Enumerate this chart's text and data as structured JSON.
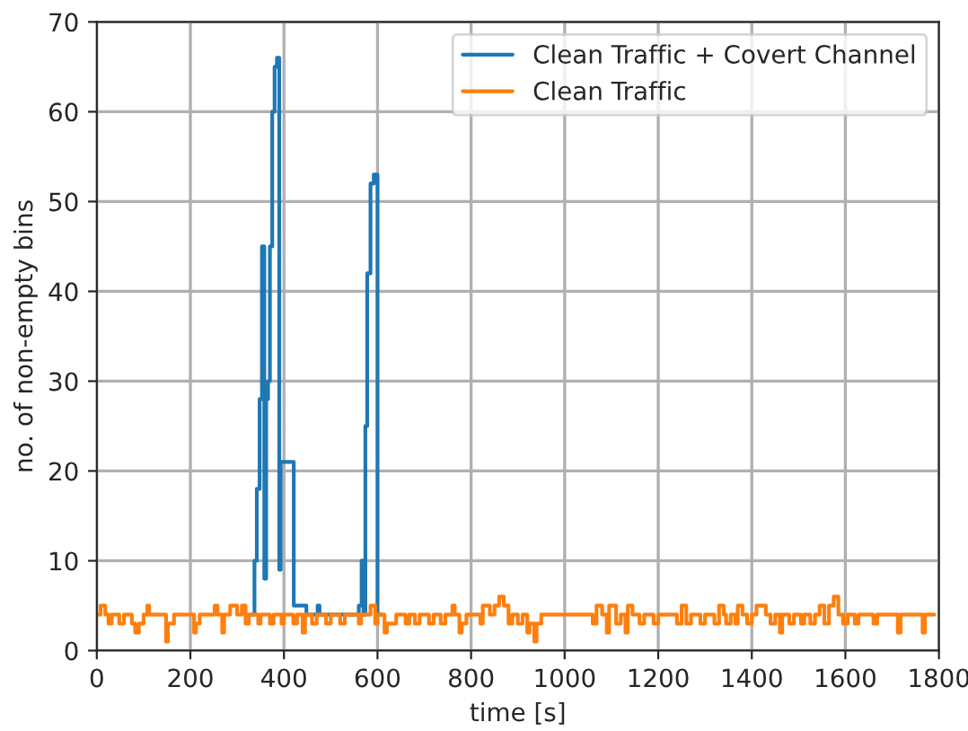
{
  "chart_data": {
    "type": "step",
    "xlabel": "time [s]",
    "ylabel": "no. of non-empty bins",
    "xlim": [
      0,
      1800
    ],
    "ylim": [
      0,
      70
    ],
    "xticks": [
      0,
      200,
      400,
      600,
      800,
      1000,
      1200,
      1400,
      1600,
      1800
    ],
    "yticks": [
      0,
      10,
      20,
      30,
      40,
      50,
      60,
      70
    ],
    "grid": true,
    "legend": "top right",
    "series": [
      {
        "name": "Clean Traffic + Covert Channel",
        "color": "#1f77b4",
        "x": [
          330,
          337,
          342,
          348,
          353,
          358,
          362,
          366,
          370,
          375,
          380,
          385,
          390,
          393,
          421,
          448,
          472,
          476,
          560,
          566,
          570,
          574,
          578,
          585,
          592,
          600,
          610
        ],
        "values": [
          4,
          10,
          18,
          28,
          45,
          8,
          28,
          30,
          45,
          60,
          65,
          66,
          9,
          21,
          5,
          4,
          5,
          4,
          5,
          10,
          4,
          25,
          42,
          52,
          53,
          4,
          4
        ]
      },
      {
        "name": "Clean Traffic",
        "color": "#ff7f0e",
        "x": [
          0,
          8,
          18,
          25,
          32,
          48,
          58,
          75,
          82,
          90,
          100,
          108,
          112,
          140,
          148,
          152,
          165,
          200,
          208,
          212,
          220,
          245,
          252,
          258,
          268,
          272,
          285,
          300,
          310,
          318,
          325,
          345,
          350,
          370,
          378,
          395,
          400,
          420,
          428,
          440,
          445,
          460,
          470,
          490,
          500,
          520,
          530,
          560,
          565,
          585,
          595,
          600,
          615,
          620,
          640,
          660,
          668,
          680,
          690,
          710,
          720,
          735,
          745,
          760,
          765,
          775,
          780,
          790,
          820,
          825,
          840,
          850,
          860,
          870,
          880,
          888,
          900,
          910,
          920,
          925,
          935,
          940,
          950,
          1060,
          1068,
          1080,
          1090,
          1095,
          1110,
          1120,
          1130,
          1135,
          1145,
          1160,
          1170,
          1190,
          1200,
          1240,
          1250,
          1260,
          1270,
          1290,
          1300,
          1320,
          1330,
          1340,
          1345,
          1355,
          1365,
          1370,
          1380,
          1390,
          1400,
          1410,
          1430,
          1440,
          1450,
          1460,
          1465,
          1480,
          1490,
          1505,
          1512,
          1525,
          1535,
          1545,
          1555,
          1565,
          1575,
          1585,
          1595,
          1605,
          1620,
          1628,
          1660,
          1668,
          1712,
          1718,
          1765,
          1770,
          1790
        ],
        "values": [
          4,
          5,
          4,
          3,
          4,
          3,
          4,
          3,
          2,
          3,
          4,
          5,
          4,
          4,
          1,
          3,
          4,
          4,
          2,
          3,
          4,
          4,
          5,
          4,
          2,
          4,
          5,
          4,
          5,
          3,
          4,
          3,
          4,
          3,
          4,
          3,
          4,
          3,
          4,
          2,
          4,
          3,
          4,
          3,
          4,
          3,
          4,
          3,
          4,
          5,
          3,
          4,
          2,
          3,
          4,
          3,
          4,
          3,
          4,
          3,
          4,
          3,
          4,
          5,
          4,
          2,
          3,
          4,
          3,
          5,
          4,
          5,
          6,
          5,
          3,
          4,
          3,
          4,
          2,
          3,
          1,
          3,
          4,
          3,
          5,
          4,
          2,
          5,
          3,
          4,
          2,
          5,
          4,
          3,
          4,
          3,
          4,
          3,
          5,
          3,
          4,
          3,
          4,
          3,
          5,
          4,
          3,
          4,
          3,
          5,
          4,
          3,
          4,
          5,
          4,
          3,
          4,
          2,
          4,
          3,
          4,
          3,
          4,
          3,
          4,
          5,
          3,
          5,
          6,
          4,
          3,
          4,
          3,
          4,
          3,
          4,
          2,
          4,
          2,
          4,
          4
        ]
      }
    ]
  }
}
